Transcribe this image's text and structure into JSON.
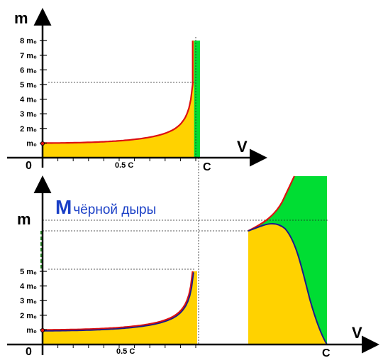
{
  "colors": {
    "fill_yellow": "#ffd200",
    "fill_green": "#00dd33",
    "curve_red": "#dd1111",
    "curve_blue": "#1a1a8c",
    "text_blue": "#1a3fc6",
    "guide_green": "#2a8a2a"
  },
  "chart_data": [
    {
      "type": "area",
      "y_axis_label": "m",
      "x_axis_label": "V",
      "origin_label": "0",
      "c_label": "C",
      "x_tick_label": "0.5 C",
      "y_tick_labels": [
        {
          "label": "m₀",
          "value": 1
        },
        {
          "label": "2 m₀",
          "value": 2
        },
        {
          "label": "3 m₀",
          "value": 3
        },
        {
          "label": "4 m₀",
          "value": 4
        },
        {
          "label": "5 m₀",
          "value": 5
        },
        {
          "label": "6 m₀",
          "value": 6
        },
        {
          "label": "7 m₀",
          "value": 7
        },
        {
          "label": "8 m₀",
          "value": 8
        }
      ],
      "xlim": [
        0,
        1.2
      ],
      "ylim": [
        0,
        9
      ],
      "curve": "relativistic mass m = m0/sqrt(1 - v²/c²)",
      "curve_v_max": 0.98,
      "green_band": {
        "v_from": 0.98,
        "v_to": 1.0,
        "m_top": 8
      }
    },
    {
      "type": "area",
      "y_axis_label": "m",
      "x_axis_label": "V",
      "origin_label": "0",
      "c_label": "C",
      "x_tick_label": "0.5 C",
      "bh_label_main": "M",
      "bh_label_sub": "чёрной дыры",
      "y_tick_labels": [
        {
          "label": "m₀",
          "value": 1
        },
        {
          "label": "2 m₀",
          "value": 2
        },
        {
          "label": "3 m₀",
          "value": 3
        },
        {
          "label": "4 m₀",
          "value": 4
        },
        {
          "label": "5 m₀",
          "value": 5
        }
      ]
    }
  ]
}
